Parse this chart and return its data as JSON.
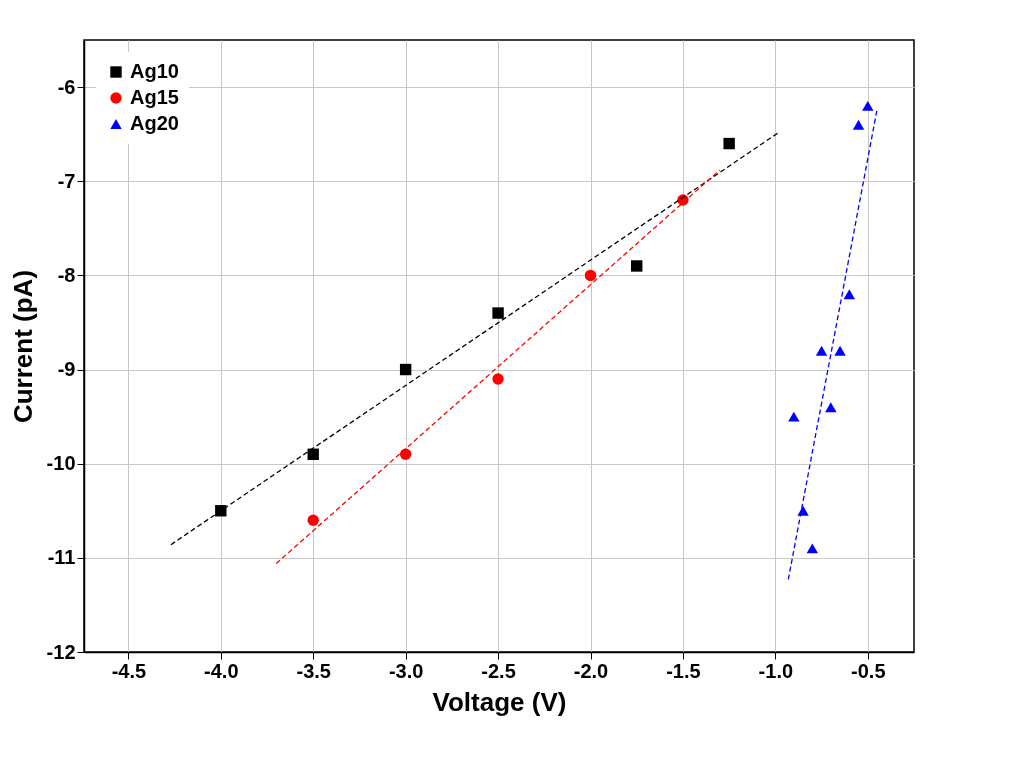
{
  "chart_data": {
    "type": "scatter",
    "xlabel": "Voltage (V)",
    "ylabel": "Current (pA)",
    "xlim": [
      -4.74,
      -0.25
    ],
    "ylim": [
      -12,
      -5.5
    ],
    "xticks": [
      -4.5,
      {
        "value": -4,
        "label": "-4.0"
      },
      -3.5,
      {
        "value": -3,
        "label": "-3.0"
      },
      -2.5,
      {
        "value": -2,
        "label": "-2.0"
      },
      -1.5,
      {
        "value": -1,
        "label": "-1.0"
      },
      -0.5
    ],
    "yticks": [
      -12,
      -11,
      -10,
      -9,
      -8,
      -7,
      -6
    ],
    "grid": true,
    "legend": "top left",
    "series": [
      {
        "name": "Ag10",
        "color": "#000000",
        "marker": "square",
        "x": [
          -4,
          -3.5,
          -3,
          -2.5,
          -1.75,
          -1.25
        ],
        "values": [
          -10.5,
          -9.9,
          -9.0,
          -8.4,
          -7.9,
          -6.6
        ]
      },
      {
        "name": "Ag15",
        "color": "#ff0000",
        "marker": "circle",
        "x": [
          -3.5,
          -3,
          -2.5,
          -2,
          -1.5
        ],
        "values": [
          -10.6,
          -9.9,
          -9.1,
          -8.0,
          -7.2
        ]
      },
      {
        "name": "Ag20",
        "color": "#0000ff",
        "marker": "triangle",
        "x": [
          -0.9,
          -0.85,
          -0.8,
          -0.75,
          -0.7,
          -0.65,
          -0.6,
          -0.55,
          -0.5
        ],
        "values": [
          -9.5,
          -10.5,
          -10.9,
          -8.8,
          -9.4,
          -8.8,
          -8.2,
          -6.4,
          -6.2
        ]
      },
      {
        "type": "line",
        "color": "#000000",
        "line_style": "dashed",
        "x": [
          -4.27,
          -0.98
        ],
        "values": [
          -10.86,
          -6.48
        ]
      },
      {
        "type": "line",
        "color": "#ff0000",
        "line_style": "dashed",
        "x": [
          -3.7,
          -1.3
        ],
        "values": [
          -11.06,
          -6.88
        ]
      },
      {
        "type": "line",
        "color": "#0000ff",
        "line_style": "dashed",
        "x": [
          -0.93,
          -0.45
        ],
        "values": [
          -11.23,
          -6.24
        ]
      }
    ]
  }
}
